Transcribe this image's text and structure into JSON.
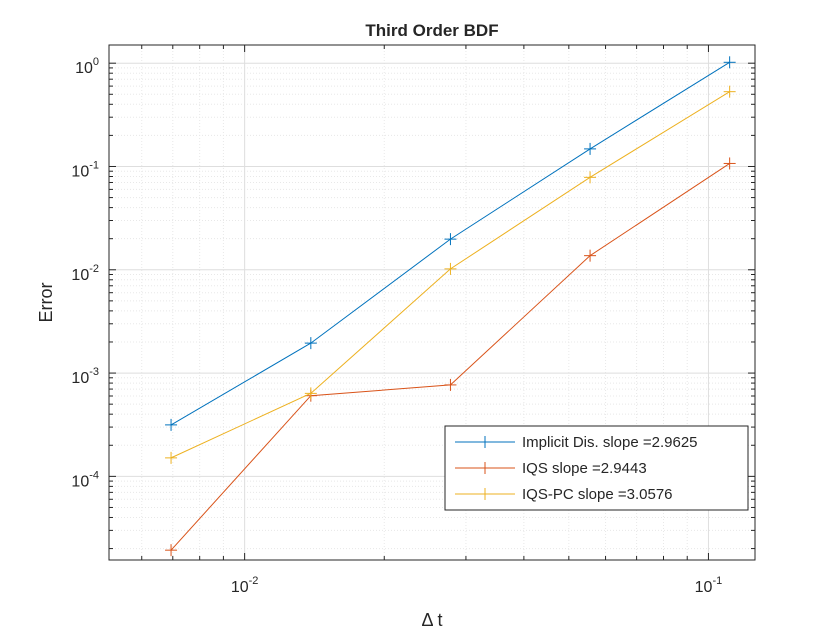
{
  "chart_data": {
    "type": "line",
    "title": "Third Order BDF",
    "xlabel": "Δ t",
    "ylabel": "Error",
    "xscale": "log",
    "yscale": "log",
    "xlim": [
      0.0051,
      0.126
    ],
    "ylim": [
      1.55e-05,
      1.5
    ],
    "grid": true,
    "minor_grid": true,
    "legend_position": "bottom-right",
    "x": [
      0.00694,
      0.01389,
      0.02778,
      0.05556,
      0.1111
    ],
    "xticks": [
      {
        "base": "10",
        "exp": "-2",
        "value": 0.01
      },
      {
        "base": "10",
        "exp": "-1",
        "value": 0.1
      }
    ],
    "yticks": [
      {
        "base": "10",
        "exp": "-4",
        "value": 0.0001
      },
      {
        "base": "10",
        "exp": "-3",
        "value": 0.001
      },
      {
        "base": "10",
        "exp": "-2",
        "value": 0.01
      },
      {
        "base": "10",
        "exp": "-1",
        "value": 0.1
      },
      {
        "base": "10",
        "exp": "0",
        "value": 1
      }
    ],
    "series": [
      {
        "name": "Implicit Dis. slope =2.9625",
        "color": "#0072BD",
        "marker": "+",
        "values": [
          0.000315,
          0.00195,
          0.0198,
          0.148,
          1.02
        ]
      },
      {
        "name": "IQS slope =2.9443",
        "color": "#D95319",
        "marker": "+",
        "values": [
          1.93e-05,
          0.000604,
          0.000768,
          0.0137,
          0.107
        ]
      },
      {
        "name": "IQS-PC slope =3.0576",
        "color": "#EDB120",
        "marker": "+",
        "values": [
          0.000151,
          0.000636,
          0.0102,
          0.0785,
          0.53
        ]
      }
    ]
  }
}
